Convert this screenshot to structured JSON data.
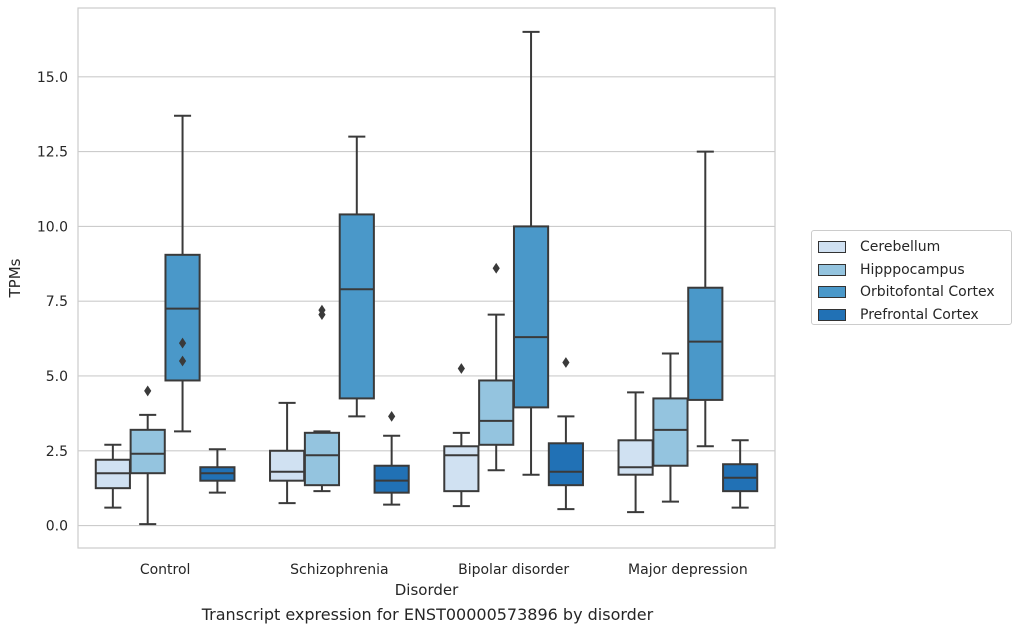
{
  "chart_data": {
    "type": "box",
    "caption": "Transcript expression for ENST00000573896 by disorder",
    "xlabel": "Disorder",
    "ylabel": "TPMs",
    "ylim": [
      -0.75,
      17.3
    ],
    "yticks": [
      0.0,
      2.5,
      5.0,
      7.5,
      10.0,
      12.5,
      15.0
    ],
    "ytick_labels": [
      "0.0",
      "2.5",
      "5.0",
      "7.5",
      "10.0",
      "12.5",
      "15.0"
    ],
    "grid": true,
    "legend_position": "right",
    "categories": [
      "Control",
      "Schizophrenia",
      "Bipolar disorder",
      "Major depression"
    ],
    "series": [
      {
        "name": "Cerebellum",
        "color": "#d0e1f2",
        "boxes": [
          {
            "whislo": 0.6,
            "q1": 1.25,
            "med": 1.75,
            "q3": 2.2,
            "whishi": 2.7,
            "fliers": []
          },
          {
            "whislo": 0.75,
            "q1": 1.5,
            "med": 1.8,
            "q3": 2.5,
            "whishi": 4.1,
            "fliers": []
          },
          {
            "whislo": 0.65,
            "q1": 1.15,
            "med": 2.35,
            "q3": 2.65,
            "whishi": 3.1,
            "fliers": [
              5.25
            ]
          },
          {
            "whislo": 0.45,
            "q1": 1.7,
            "med": 1.95,
            "q3": 2.85,
            "whishi": 4.45,
            "fliers": []
          }
        ]
      },
      {
        "name": "Hipppocampus",
        "color": "#94c4df",
        "boxes": [
          {
            "whislo": 0.05,
            "q1": 1.75,
            "med": 2.4,
            "q3": 3.2,
            "whishi": 3.7,
            "fliers": [
              4.5
            ]
          },
          {
            "whislo": 1.15,
            "q1": 1.35,
            "med": 2.35,
            "q3": 3.1,
            "whishi": 3.15,
            "fliers": [
              7.05,
              7.2
            ]
          },
          {
            "whislo": 1.85,
            "q1": 2.7,
            "med": 3.5,
            "q3": 4.85,
            "whishi": 7.05,
            "fliers": [
              8.6
            ]
          },
          {
            "whislo": 0.8,
            "q1": 2.0,
            "med": 3.2,
            "q3": 4.25,
            "whishi": 5.75,
            "fliers": []
          }
        ]
      },
      {
        "name": "Orbitofontal Cortex",
        "color": "#4a98c9",
        "boxes": [
          {
            "whislo": 3.15,
            "q1": 4.85,
            "med": 7.25,
            "q3": 9.05,
            "whishi": 13.7,
            "fliers": [
              5.5,
              6.1
            ]
          },
          {
            "whislo": 3.65,
            "q1": 4.25,
            "med": 7.9,
            "q3": 10.4,
            "whishi": 13.0,
            "fliers": []
          },
          {
            "whislo": 1.7,
            "q1": 3.95,
            "med": 6.3,
            "q3": 10.0,
            "whishi": 16.5,
            "fliers": []
          },
          {
            "whislo": 2.65,
            "q1": 4.2,
            "med": 6.15,
            "q3": 7.95,
            "whishi": 12.5,
            "fliers": []
          }
        ]
      },
      {
        "name": "Prefrontal Cortex",
        "color": "#2171b5",
        "boxes": [
          {
            "whislo": 1.1,
            "q1": 1.5,
            "med": 1.75,
            "q3": 1.95,
            "whishi": 2.55,
            "fliers": []
          },
          {
            "whislo": 0.7,
            "q1": 1.1,
            "med": 1.5,
            "q3": 2.0,
            "whishi": 3.0,
            "fliers": [
              3.65
            ]
          },
          {
            "whislo": 0.55,
            "q1": 1.35,
            "med": 1.8,
            "q3": 2.75,
            "whishi": 3.65,
            "fliers": [
              5.45
            ]
          },
          {
            "whislo": 0.6,
            "q1": 1.15,
            "med": 1.6,
            "q3": 2.05,
            "whishi": 2.85,
            "fliers": []
          }
        ]
      }
    ]
  }
}
